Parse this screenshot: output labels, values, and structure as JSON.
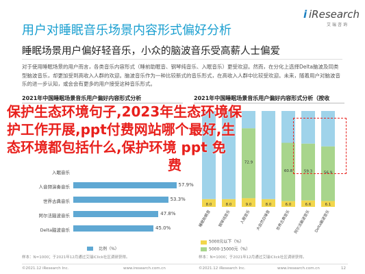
{
  "header": {
    "title": "用户对睡眠音乐场景内容形式偏好分析",
    "subtitle": "睡眠场景用户偏好轻音乐，小众的脑波音乐受高薪人士偏爱",
    "logo_brand": "iResearch",
    "logo_cn": "艾瑞咨询"
  },
  "body_text": "对于使用睡眠场景的用户而言，各类音乐内容形式（睡前助眠音、钢琴纯音乐、入眠音乐）更受欢迎。然而，在分化上选择Delta脑波及同类型脑波音乐，却更加受到高收入人群的欢迎。脑波音乐作为一种比较新式的音乐形式，在高收入人群中比较受欢迎。未来，随着用户对脑波音乐的进一步认知，或会会有更多的用户接受这种音乐形式。",
  "overlay_text": {
    "line1": "保护生态环境句子,2023年生态环境保",
    "line2": "护工作开展,ppt付费网站哪个最好,生",
    "line3": "态环境都包括什么,保护环境 ppt 免",
    "line4": "费"
  },
  "left_chart": {
    "title": "2021年中国睡眠场景音乐用户偏好内容形式分析",
    "legend": "比例（%）",
    "note": "样本：N=1000；于2021年12月通过艾瑞iClick社区调研获得。"
  },
  "right_chart": {
    "title": "2021年中国睡眠场景音乐用户偏好内容形式分析（按收",
    "legend": [
      "5000元以下（%）",
      "5000-15000元（%）"
    ],
    "note": "样本：N=1000；于2021年12月通过艾瑞iClick社区调研获得。"
  },
  "chart_data": [
    {
      "type": "bar",
      "orientation": "horizontal",
      "title": "2021年中国睡眠场景音乐用户偏好内容形式分析",
      "categories": [
        "入眠音乐",
        "人音频演奏音乐",
        "世界古典音乐",
        "阿尔法脑波音乐",
        "Delta脑波音乐"
      ],
      "values": [
        null,
        57.9,
        53.3,
        47.8,
        45.0
      ],
      "value_labels": [
        "",
        "57.9%",
        "53.3%",
        "47.8%",
        "45.0%"
      ],
      "series_name": "比例（%）"
    },
    {
      "type": "bar",
      "stacked": true,
      "title": "2021年中国睡眠场景音乐用户偏好内容形式分析（按收",
      "categories": [
        "睡眠助眠音",
        "钢琴纯音乐",
        "入眠音乐",
        "大自然白噪音",
        "世界古典音乐",
        "阿尔法脑波音乐",
        "Delta脑波音乐"
      ],
      "series": [
        {
          "name": "5000元以下（%）",
          "values": [
            8.0,
            8.0,
            9.0,
            8.0,
            6.0,
            6.6,
            6.1
          ]
        },
        {
          "name": "5000-15000元（%）",
          "values": [
            null,
            null,
            72.9,
            null,
            60.8,
            59.3,
            56.9
          ]
        }
      ]
    }
  ],
  "footer": {
    "left_copyright": "©2021.12 iResearch Inc.",
    "left_site": "www.iresearch.com.cn",
    "right_copyright": "©2021.12 iResearch Inc.",
    "right_site": "www.iresearch.com.cn",
    "page": "12"
  },
  "colors": {
    "title_blue": "#1a9fd0",
    "overlay_red": "#e8201c",
    "bar_blue": "#5fa8d3",
    "bar_yellow": "#f2d64b",
    "bar_green": "#a8d58c",
    "bar_lightblue": "#9fd3ea"
  }
}
